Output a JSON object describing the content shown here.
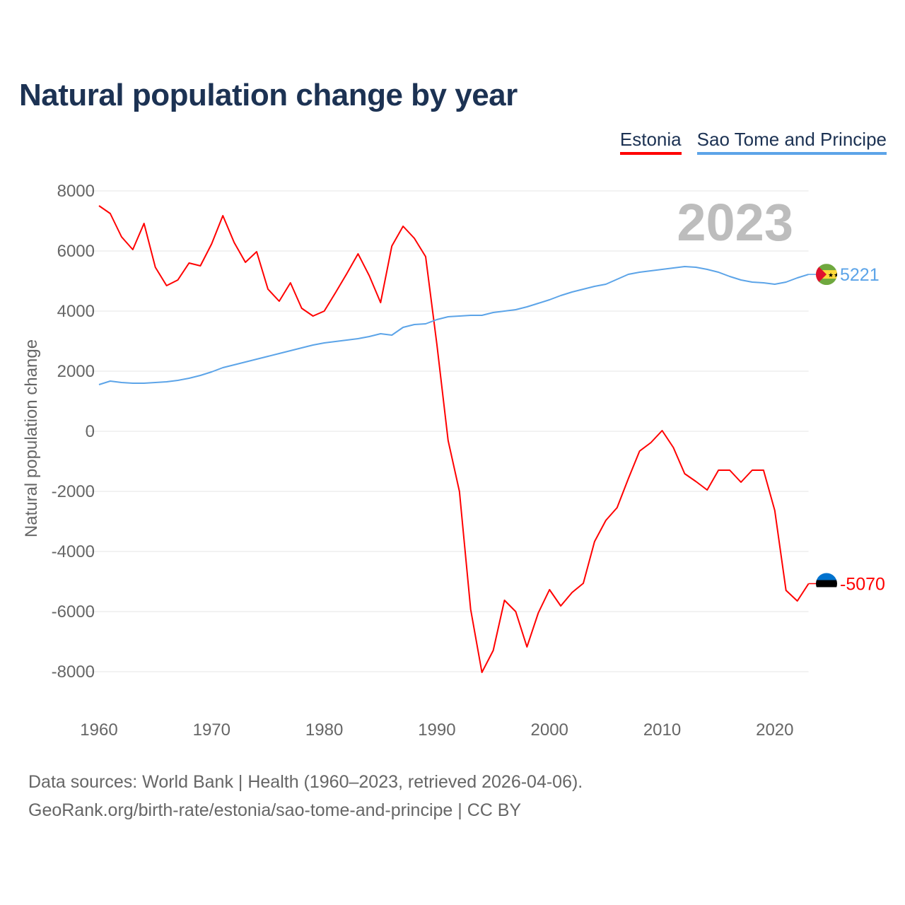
{
  "title": "Natural population change by year",
  "footer": {
    "line1": "Data sources: World Bank | Health (1960–2023, retrieved 2026-04-06).",
    "line2": "GeoRank.org/birth-rate/estonia/sao-tome-and-principe | CC BY"
  },
  "chart_data": {
    "type": "line",
    "title": "Natural population change by year",
    "xlabel": "",
    "ylabel": "Natural population change",
    "year_label": "2023",
    "xlim": [
      1960,
      2023
    ],
    "ylim": [
      -9000,
      8000
    ],
    "xticks": [
      "1960",
      "1970",
      "1980",
      "1990",
      "2000",
      "2010",
      "2020"
    ],
    "yticks": [
      "8000",
      "6000",
      "4000",
      "2000",
      "0",
      "-2000",
      "-4000",
      "-6000",
      "-8000"
    ],
    "grid": true,
    "legend_position": "top-right",
    "x": [
      1960,
      1961,
      1962,
      1963,
      1964,
      1965,
      1966,
      1967,
      1968,
      1969,
      1970,
      1971,
      1972,
      1973,
      1974,
      1975,
      1976,
      1977,
      1978,
      1979,
      1980,
      1981,
      1982,
      1983,
      1984,
      1985,
      1986,
      1987,
      1988,
      1989,
      1990,
      1991,
      1992,
      1993,
      1994,
      1995,
      1996,
      1997,
      1998,
      1999,
      2000,
      2001,
      2002,
      2003,
      2004,
      2005,
      2006,
      2007,
      2008,
      2009,
      2010,
      2011,
      2012,
      2013,
      2014,
      2015,
      2016,
      2017,
      2018,
      2019,
      2020,
      2021,
      2022,
      2023
    ],
    "series": [
      {
        "name": "Estonia",
        "color": "#ff0000",
        "end_label": "-5070",
        "values": [
          7506,
          7247,
          6470,
          6047,
          6918,
          5459,
          4847,
          5035,
          5600,
          5506,
          6235,
          7176,
          6282,
          5624,
          5976,
          4729,
          4329,
          4941,
          4094,
          3835,
          4000,
          4612,
          5247,
          5906,
          5176,
          4282,
          6165,
          6824,
          6424,
          5812,
          2894,
          -306,
          -2000,
          -5929,
          -8024,
          -7294,
          -5624,
          -6000,
          -7176,
          -6047,
          -5271,
          -5812,
          -5365,
          -5059,
          -3671,
          -2965,
          -2541,
          -1576,
          -659,
          -376,
          24,
          -541,
          -1412,
          -1671,
          -1953,
          -1294,
          -1294,
          -1694,
          -1294,
          -1294,
          -2635,
          -5294,
          -5647,
          -5070
        ]
      },
      {
        "name": "Sao Tome and Principe",
        "color": "#5ca4e8",
        "end_label": "5221",
        "values": [
          1553,
          1670,
          1624,
          1600,
          1600,
          1624,
          1647,
          1694,
          1765,
          1859,
          1976,
          2118,
          2212,
          2306,
          2400,
          2494,
          2588,
          2682,
          2776,
          2871,
          2941,
          2988,
          3035,
          3082,
          3153,
          3247,
          3200,
          3459,
          3553,
          3576,
          3718,
          3812,
          3835,
          3859,
          3859,
          3953,
          4000,
          4047,
          4141,
          4259,
          4376,
          4518,
          4635,
          4729,
          4824,
          4894,
          5059,
          5224,
          5294,
          5341,
          5388,
          5435,
          5482,
          5459,
          5388,
          5294,
          5153,
          5035,
          4965,
          4941,
          4894,
          4965,
          5106,
          5221
        ]
      }
    ]
  }
}
